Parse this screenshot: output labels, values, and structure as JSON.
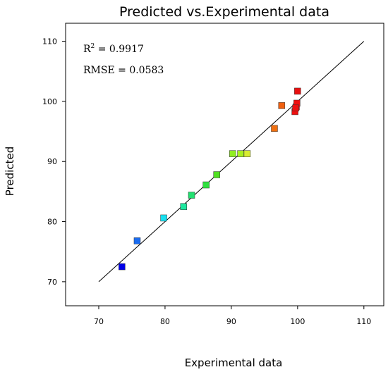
{
  "chart_data": {
    "type": "scatter",
    "title": "Predicted vs.Experimental data",
    "xlabel": "Experimental data",
    "ylabel": "Predicted",
    "xlim": [
      65,
      113
    ],
    "ylim": [
      66,
      113
    ],
    "x_ticks": [
      70,
      80,
      90,
      100,
      110
    ],
    "y_ticks": [
      70,
      80,
      90,
      100,
      110
    ],
    "x_tick_labels": [
      "70",
      "80",
      "90",
      "100",
      "110"
    ],
    "y_tick_labels": [
      "70",
      "80",
      "90",
      "100",
      "110"
    ],
    "grid": false,
    "reference_line": {
      "from": [
        70,
        70
      ],
      "to": [
        110,
        110
      ],
      "color": "#000000"
    },
    "annotations": {
      "r2_base": "R",
      "r2_sup": "2",
      "r2_value": " = 0.9917",
      "rmse": "RMSE = 0.0583"
    },
    "points": [
      {
        "x": 73.5,
        "y": 72.5,
        "color": "#0000e6"
      },
      {
        "x": 75.8,
        "y": 76.8,
        "color": "#1a6cf0"
      },
      {
        "x": 79.8,
        "y": 80.6,
        "color": "#18e0f0"
      },
      {
        "x": 82.8,
        "y": 82.5,
        "color": "#1ee8a0"
      },
      {
        "x": 84.0,
        "y": 84.4,
        "color": "#22e070"
      },
      {
        "x": 86.2,
        "y": 86.1,
        "color": "#30e040"
      },
      {
        "x": 87.8,
        "y": 87.8,
        "color": "#50e020"
      },
      {
        "x": 90.2,
        "y": 91.3,
        "color": "#90ee20"
      },
      {
        "x": 91.4,
        "y": 91.3,
        "color": "#a8f020"
      },
      {
        "x": 92.4,
        "y": 91.3,
        "color": "#d8ec30"
      },
      {
        "x": 96.5,
        "y": 95.5,
        "color": "#f07010"
      },
      {
        "x": 97.6,
        "y": 99.3,
        "color": "#f06010"
      },
      {
        "x": 99.6,
        "y": 98.3,
        "color": "#ee1010"
      },
      {
        "x": 99.8,
        "y": 99.1,
        "color": "#ee1010"
      },
      {
        "x": 99.9,
        "y": 99.7,
        "color": "#ee1010"
      },
      {
        "x": 99.7,
        "y": 98.9,
        "color": "#ee1010"
      },
      {
        "x": 100.0,
        "y": 101.7,
        "color": "#e81010"
      }
    ]
  }
}
